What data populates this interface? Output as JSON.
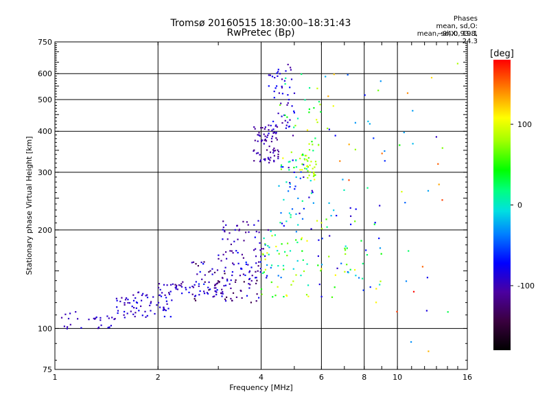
{
  "chart_data": {
    "type": "scatter",
    "title_line1": "Tromsø 20160515 18:30:00–18:31:43",
    "title_line2": "RwPretec (Bp)",
    "xlabel": "Frequency [MHz]",
    "ylabel": "Stationary phase Virtual Height [km]",
    "x_scale": "log",
    "y_scale": "log",
    "xlim": [
      1,
      16
    ],
    "ylim": [
      75,
      750
    ],
    "x_ticks": [
      1,
      2,
      4,
      6,
      8,
      10,
      16
    ],
    "y_ticks": [
      75,
      100,
      200,
      300,
      400,
      500,
      600,
      750
    ],
    "grid": true,
    "legend": {
      "title": "Phases",
      "line_o": "mean, sd,O: −94.0, 19.1",
      "line_x": "mean, sd,X:  93.8, 24.3"
    },
    "colorbar": {
      "label": "[deg]",
      "range": [
        -180,
        180
      ],
      "ticks": [
        100,
        0,
        -100
      ]
    },
    "seed": 20160515,
    "series": [
      {
        "x_range": [
          1.02,
          1.5
        ],
        "y_range": [
          99,
          113
        ],
        "phase_range": [
          -110,
          -80
        ],
        "points": 30
      },
      {
        "x_range": [
          1.5,
          2.2
        ],
        "y_range": [
          108,
          130
        ],
        "phase_range": [
          -110,
          -75
        ],
        "points": 70
      },
      {
        "x_range": [
          2.0,
          3.2
        ],
        "y_range": [
          125,
          140
        ],
        "phase_range": [
          -120,
          -70
        ],
        "points": 60
      },
      {
        "x_range": [
          2.5,
          4.0
        ],
        "y_range": [
          120,
          160
        ],
        "phase_range": [
          -150,
          -60
        ],
        "points": 80
      },
      {
        "x_range": [
          3.0,
          4.2
        ],
        "y_range": [
          140,
          215
        ],
        "phase_range": [
          -120,
          -70
        ],
        "points": 70
      },
      {
        "x_range": [
          3.8,
          4.5
        ],
        "y_range": [
          320,
          420
        ],
        "phase_range": [
          -120,
          -90
        ],
        "points": 70
      },
      {
        "x_range": [
          4.2,
          5.0
        ],
        "y_range": [
          380,
          640
        ],
        "phase_range": [
          -110,
          -70
        ],
        "points": 55
      },
      {
        "x_range": [
          4.0,
          5.5
        ],
        "y_range": [
          125,
          200
        ],
        "phase_range": [
          -40,
          110
        ],
        "points": 60
      },
      {
        "x_range": [
          4.5,
          5.7
        ],
        "y_range": [
          200,
          330
        ],
        "phase_range": [
          -100,
          20
        ],
        "points": 50
      },
      {
        "x_range": [
          5.2,
          5.8
        ],
        "y_range": [
          280,
          340
        ],
        "phase_range": [
          60,
          110
        ],
        "points": 30
      },
      {
        "x_range": [
          4.5,
          6.0
        ],
        "y_range": [
          300,
          600
        ],
        "phase_range": [
          0,
          120
        ],
        "points": 40
      },
      {
        "x_range": [
          5.8,
          9.0
        ],
        "y_range": [
          120,
          250
        ],
        "phase_range": [
          -100,
          120
        ],
        "points": 60
      },
      {
        "x_range": [
          6.0,
          9.5
        ],
        "y_range": [
          250,
          600
        ],
        "phase_range": [
          -100,
          160
        ],
        "points": 25
      },
      {
        "x_range": [
          9.5,
          15.0
        ],
        "y_range": [
          85,
          650
        ],
        "phase_range": [
          -100,
          180
        ],
        "points": 25
      }
    ]
  }
}
